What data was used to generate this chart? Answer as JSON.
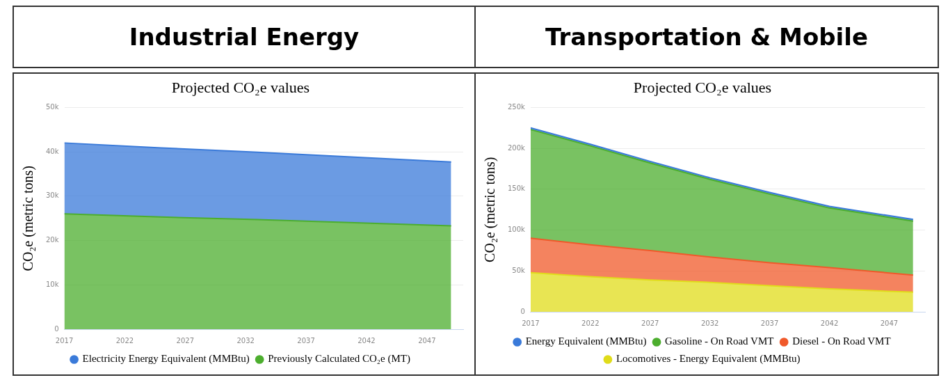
{
  "chart_data": [
    {
      "type": "area",
      "title": "Industrial Energy",
      "subtitle": "Projected CO₂e values",
      "ylabel": "CO₂e (metric tons)",
      "stacked": true,
      "grid": "y",
      "legend": "bottom",
      "marker": "none",
      "x": [
        2017,
        2025,
        2033,
        2041,
        2049
      ],
      "xlim": [
        2017,
        2050
      ],
      "xticks": [
        2017,
        2022,
        2027,
        2032,
        2037,
        2042,
        2047
      ],
      "ylim": [
        0,
        50000
      ],
      "yticks": [
        {
          "value": 0,
          "label": "0"
        },
        {
          "value": 10000,
          "label": "10k"
        },
        {
          "value": 20000,
          "label": "20k"
        },
        {
          "value": 30000,
          "label": "30k"
        },
        {
          "value": 40000,
          "label": "40k"
        },
        {
          "value": 50000,
          "label": "50k"
        }
      ],
      "series": [
        {
          "name": "Previously Calculated CO₂e (MT)",
          "color": "#4cae2e",
          "values": [
            26000,
            25300,
            24700,
            24000,
            23300
          ]
        },
        {
          "name": "Electricity Energy Equivalent (MMBtu)",
          "color": "#3a7ad9",
          "values": [
            16000,
            15600,
            15200,
            14800,
            14400
          ]
        }
      ]
    },
    {
      "type": "area",
      "title": "Transportation & Mobile",
      "subtitle": "Projected CO₂e values",
      "ylabel": "CO₂e (metric tons)",
      "stacked": true,
      "grid": "y",
      "legend": "bottom",
      "marker": "none",
      "x": [
        2017,
        2022,
        2027,
        2032,
        2037,
        2042,
        2049
      ],
      "xlim": [
        2017,
        2050
      ],
      "xticks": [
        2017,
        2022,
        2027,
        2032,
        2037,
        2042,
        2047
      ],
      "ylim": [
        0,
        250000
      ],
      "yticks": [
        {
          "value": 0,
          "label": "0"
        },
        {
          "value": 50000,
          "label": "50k"
        },
        {
          "value": 100000,
          "label": "100k"
        },
        {
          "value": 150000,
          "label": "150k"
        },
        {
          "value": 200000,
          "label": "200k"
        },
        {
          "value": 250000,
          "label": "250k"
        }
      ],
      "series": [
        {
          "name": "Locomotives - Energy Equivalent (MMBtu)",
          "color": "#e0dc1a",
          "values": [
            48000,
            43000,
            39000,
            36000,
            32000,
            28000,
            24000
          ]
        },
        {
          "name": "Diesel - On Road VMT",
          "color": "#f0592a",
          "values": [
            42000,
            39000,
            36000,
            31000,
            28000,
            26000,
            21000
          ]
        },
        {
          "name": "Gasoline - On Road VMT",
          "color": "#4cae2e",
          "values": [
            133000,
            121000,
            107000,
            95000,
            84000,
            73000,
            66000
          ]
        },
        {
          "name": "Energy Equivalent (MMBtu)",
          "color": "#3a7ad9",
          "values": [
            2000,
            2000,
            2000,
            2000,
            2000,
            2000,
            2000
          ]
        }
      ]
    }
  ]
}
